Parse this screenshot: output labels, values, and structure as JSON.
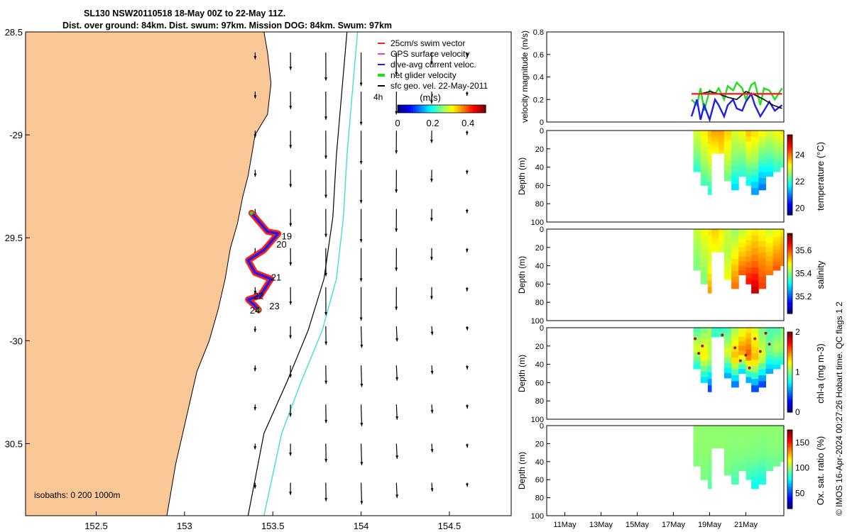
{
  "title_line1": "SL130 NSW20110518 18-May 00Z to 22-May 11Z.",
  "title_line2": "Dist. over ground: 84km. Dist. swum: 97km. Mission DOG: 84km. Swum: 97km",
  "credit": "© IMOS 16-Apr-2024 00:27:26 Hobart time. QC flags 1  2",
  "colors": {
    "land": "#fac896",
    "coast": "#000000",
    "isobath1000": "#40e0d0",
    "track": "#ff1e1e",
    "glider": "#1e1ee6",
    "net": "#22dd22",
    "geo": "#000000",
    "gps": "#e040e0"
  },
  "chart_data": [
    {
      "type": "scatter",
      "panel": "map",
      "xlim": [
        152.1,
        154.85
      ],
      "ylim": [
        -30.85,
        -28.5
      ],
      "x_ticks": [
        152.5,
        153,
        153.5,
        154,
        154.5
      ],
      "x_tick_labels": [
        "152.5",
        "153",
        "153.5",
        "154",
        "154.5"
      ],
      "y_ticks": [
        -28.5,
        -29,
        -29.5,
        -30,
        -30.5
      ],
      "y_tick_labels": [
        "28.5",
        "-29",
        "29.5",
        "-30",
        "30.5"
      ],
      "legend": [
        {
          "label": "25cm/s swim vector",
          "color": "#ff1e1e"
        },
        {
          "label": "GPS surface velocity",
          "color": "#e040e0"
        },
        {
          "label": "dive-avg current veloc.",
          "color": "#1e1ee6"
        },
        {
          "label": "net glider velocity",
          "color": "#22dd22"
        },
        {
          "label": "sfc geo. vel. 22-May-2011",
          "color": "#000000"
        }
      ],
      "legend_extra": "4h",
      "colorbar": {
        "label": "(m/s)",
        "ticks": [
          "0",
          "0.2",
          "0.4"
        ],
        "range": [
          0,
          0.5
        ]
      },
      "isobath_note": "isobaths: 0   200  1000m",
      "track_points": [
        {
          "lon": 153.38,
          "lat": -29.38
        },
        {
          "lon": 153.42,
          "lat": -29.42
        },
        {
          "lon": 153.47,
          "lat": -29.47
        },
        {
          "lon": 153.53,
          "lat": -29.48
        },
        {
          "lon": 153.45,
          "lat": -29.56
        },
        {
          "lon": 153.36,
          "lat": -29.61
        },
        {
          "lon": 153.4,
          "lat": -29.67
        },
        {
          "lon": 153.49,
          "lat": -29.7
        },
        {
          "lon": 153.43,
          "lat": -29.78
        },
        {
          "lon": 153.36,
          "lat": -29.8
        },
        {
          "lon": 153.4,
          "lat": -29.83
        },
        {
          "lon": 153.42,
          "lat": -29.85
        }
      ],
      "day_labels": [
        {
          "text": "19",
          "lon": 153.55,
          "lat": -29.49
        },
        {
          "text": "20",
          "lon": 153.52,
          "lat": -29.53
        },
        {
          "text": "21",
          "lon": 153.49,
          "lat": -29.69
        },
        {
          "text": "22",
          "lon": 153.39,
          "lat": -29.78
        },
        {
          "text": "23",
          "lon": 153.48,
          "lat": -29.83
        },
        {
          "text": "24",
          "lon": 153.37,
          "lat": -29.85
        }
      ]
    },
    {
      "type": "line",
      "panel": "velocity",
      "ylabel": "velocity magnitude (m/s)",
      "xlim": [
        10,
        23.1
      ],
      "ylim": [
        0,
        0.8
      ],
      "y_ticks": [
        0,
        0.2,
        0.4,
        0.6,
        0.8
      ],
      "y_tick_labels": [
        "0",
        "0.2",
        "0.4",
        "0.6",
        "0.8"
      ],
      "series": [
        {
          "color": "#22dd22",
          "x": [
            18,
            18.3,
            18.5,
            18.7,
            19,
            19.3,
            19.5,
            19.8,
            20,
            20.3,
            20.5,
            20.8,
            21,
            21.3,
            21.5,
            21.8,
            22,
            22.3,
            22.6,
            23
          ],
          "y": [
            0.2,
            0.15,
            0.3,
            0.1,
            0.28,
            0.25,
            0.3,
            0.2,
            0.32,
            0.28,
            0.35,
            0.3,
            0.2,
            0.33,
            0.35,
            0.15,
            0.3,
            0.28,
            0.2,
            0.3
          ]
        },
        {
          "color": "#1e1ee6",
          "x": [
            18,
            18.3,
            18.5,
            18.7,
            19,
            19.3,
            19.5,
            19.8,
            20,
            20.3,
            20.5,
            20.8,
            21,
            21.3,
            21.5,
            21.8,
            22,
            22.3,
            22.6,
            23
          ],
          "y": [
            0.05,
            0.2,
            0.02,
            0.15,
            0.02,
            0.2,
            0.15,
            0.05,
            0.15,
            0.2,
            0.12,
            0.1,
            0.18,
            0.25,
            0.15,
            0.05,
            0.1,
            0.18,
            0.1,
            0.15
          ]
        },
        {
          "color": "#000000",
          "x": [
            18,
            18.5,
            19,
            19.5,
            20,
            20.5,
            21,
            21.5,
            22,
            22.5,
            23
          ],
          "y": [
            0.25,
            0.25,
            0.27,
            0.25,
            0.22,
            0.2,
            0.27,
            0.24,
            0.2,
            0.15,
            0.12
          ]
        },
        {
          "color": "#ff1e1e",
          "x": [
            18,
            19,
            20,
            21,
            22,
            23
          ],
          "y": [
            0.25,
            0.25,
            0.25,
            0.25,
            0.25,
            0.25
          ]
        }
      ]
    },
    {
      "type": "heatmap",
      "panel": "temperature",
      "ylabel": "Depth (m)",
      "cbar_label": "temperature (°C)",
      "cbar_ticks": [
        "20",
        "22",
        "24"
      ],
      "cbar_range": [
        19.5,
        25.5
      ],
      "ylim": [
        100,
        0
      ],
      "y_tick_labels": [
        "0",
        "20",
        "40",
        "60",
        "80",
        "100"
      ],
      "profiles": [
        {
          "t": 18.1,
          "maxd": 45,
          "v": [
            23.0,
            22.6,
            22.0
          ]
        },
        {
          "t": 18.5,
          "maxd": 60,
          "v": [
            23.3,
            22.8,
            22.2
          ]
        },
        {
          "t": 18.9,
          "maxd": 70,
          "v": [
            23.6,
            23.0,
            22.0
          ]
        },
        {
          "t": 19.1,
          "maxd": 25,
          "v": [
            23.8,
            23.5,
            23.2
          ]
        },
        {
          "t": 19.5,
          "maxd": 25,
          "v": [
            23.8,
            23.6,
            23.4
          ]
        },
        {
          "t": 19.8,
          "maxd": 55,
          "v": [
            23.5,
            23.0,
            22.4
          ]
        },
        {
          "t": 20.2,
          "maxd": 65,
          "v": [
            23.0,
            22.5,
            21.6
          ]
        },
        {
          "t": 20.6,
          "maxd": 50,
          "v": [
            23.2,
            22.6,
            22.0
          ]
        },
        {
          "t": 21.0,
          "maxd": 60,
          "v": [
            23.6,
            22.8,
            21.8
          ]
        },
        {
          "t": 21.3,
          "maxd": 70,
          "v": [
            23.4,
            22.6,
            21.2
          ]
        },
        {
          "t": 21.7,
          "maxd": 65,
          "v": [
            23.2,
            22.2,
            21.0
          ]
        },
        {
          "t": 22.1,
          "maxd": 50,
          "v": [
            23.0,
            22.4,
            21.6
          ]
        },
        {
          "t": 22.5,
          "maxd": 45,
          "v": [
            23.2,
            22.6,
            22.0
          ]
        },
        {
          "t": 22.9,
          "maxd": 40,
          "v": [
            23.4,
            22.8,
            22.2
          ]
        }
      ]
    },
    {
      "type": "heatmap",
      "panel": "salinity",
      "ylabel": "Depth (m)",
      "cbar_label": "salinity",
      "cbar_ticks": [
        "35.2",
        "35.4",
        "35.6"
      ],
      "cbar_range": [
        35.05,
        35.75
      ],
      "ylim": [
        100,
        0
      ],
      "y_tick_labels": [
        "0",
        "20",
        "40",
        "60",
        "80",
        "100"
      ],
      "profiles": [
        {
          "t": 18.1,
          "maxd": 45,
          "v": [
            35.45,
            35.42,
            35.4
          ]
        },
        {
          "t": 18.5,
          "maxd": 60,
          "v": [
            35.48,
            35.44,
            35.4
          ]
        },
        {
          "t": 18.9,
          "maxd": 70,
          "v": [
            35.5,
            35.46,
            35.55
          ]
        },
        {
          "t": 19.1,
          "maxd": 25,
          "v": [
            35.52,
            35.5,
            35.48
          ]
        },
        {
          "t": 19.5,
          "maxd": 25,
          "v": [
            35.5,
            35.48,
            35.46
          ]
        },
        {
          "t": 19.8,
          "maxd": 55,
          "v": [
            35.45,
            35.44,
            35.48
          ]
        },
        {
          "t": 20.2,
          "maxd": 65,
          "v": [
            35.42,
            35.5,
            35.58
          ]
        },
        {
          "t": 20.6,
          "maxd": 50,
          "v": [
            35.45,
            35.52,
            35.6
          ]
        },
        {
          "t": 21.0,
          "maxd": 60,
          "v": [
            35.48,
            35.55,
            35.65
          ]
        },
        {
          "t": 21.3,
          "maxd": 70,
          "v": [
            35.5,
            35.58,
            35.7
          ]
        },
        {
          "t": 21.7,
          "maxd": 65,
          "v": [
            35.48,
            35.56,
            35.62
          ]
        },
        {
          "t": 22.1,
          "maxd": 50,
          "v": [
            35.46,
            35.52,
            35.58
          ]
        },
        {
          "t": 22.5,
          "maxd": 45,
          "v": [
            35.48,
            35.54,
            35.6
          ]
        },
        {
          "t": 22.9,
          "maxd": 40,
          "v": [
            35.5,
            35.55,
            35.58
          ]
        }
      ]
    },
    {
      "type": "heatmap",
      "panel": "chlorophyll",
      "ylabel": "Depth (m)",
      "cbar_label": "chl-a (mg m-3)",
      "cbar_ticks": [
        "0",
        "1",
        "2"
      ],
      "cbar_range": [
        0,
        2
      ],
      "ylim": [
        100,
        0
      ],
      "y_tick_labels": [
        "0",
        "20",
        "40",
        "60",
        "80",
        "100"
      ],
      "profiles": [
        {
          "t": 18.1,
          "maxd": 45,
          "v": [
            0.9,
            1.2,
            0.8
          ]
        },
        {
          "t": 18.5,
          "maxd": 60,
          "v": [
            1.0,
            1.3,
            0.7
          ]
        },
        {
          "t": 18.9,
          "maxd": 70,
          "v": [
            1.1,
            1.1,
            0.4
          ]
        },
        {
          "t": 19.1,
          "maxd": 10,
          "v": [
            0.8,
            0.9,
            0.8
          ]
        },
        {
          "t": 19.5,
          "maxd": 10,
          "v": [
            0.8,
            0.9,
            0.9
          ]
        },
        {
          "t": 19.8,
          "maxd": 55,
          "v": [
            0.9,
            1.2,
            0.6
          ]
        },
        {
          "t": 20.2,
          "maxd": 65,
          "v": [
            1.1,
            1.4,
            0.5
          ]
        },
        {
          "t": 20.6,
          "maxd": 50,
          "v": [
            1.2,
            1.5,
            0.7
          ]
        },
        {
          "t": 21.0,
          "maxd": 60,
          "v": [
            1.3,
            1.6,
            0.6
          ]
        },
        {
          "t": 21.3,
          "maxd": 70,
          "v": [
            1.2,
            1.4,
            0.4
          ]
        },
        {
          "t": 21.7,
          "maxd": 65,
          "v": [
            1.0,
            1.2,
            0.4
          ]
        },
        {
          "t": 22.1,
          "maxd": 50,
          "v": [
            0.9,
            1.0,
            0.6
          ]
        },
        {
          "t": 22.5,
          "maxd": 45,
          "v": [
            0.9,
            1.1,
            0.7
          ]
        },
        {
          "t": 22.9,
          "maxd": 40,
          "v": [
            1.0,
            1.1,
            0.8
          ]
        }
      ]
    },
    {
      "type": "heatmap",
      "panel": "oxygen",
      "ylabel": "Depth (m)",
      "cbar_label": "Ox. sat. ratio (%)",
      "cbar_ticks": [
        "50",
        "100",
        "150"
      ],
      "cbar_range": [
        20,
        175
      ],
      "ylim": [
        100,
        0
      ],
      "y_tick_labels": [
        "0",
        "20",
        "40",
        "60",
        "80",
        "100"
      ],
      "x_tick_labels": [
        "11May",
        "13May",
        "15May",
        "17May",
        "19May",
        "21May"
      ],
      "x_ticks": [
        11,
        13,
        15,
        17,
        19,
        21
      ],
      "profiles": [
        {
          "t": 18.1,
          "maxd": 45,
          "v": [
            100,
            100,
            98
          ]
        },
        {
          "t": 18.5,
          "maxd": 60,
          "v": [
            100,
            100,
            97
          ]
        },
        {
          "t": 18.9,
          "maxd": 70,
          "v": [
            100,
            99,
            92
          ]
        },
        {
          "t": 19.1,
          "maxd": 25,
          "v": [
            100,
            100,
            100
          ]
        },
        {
          "t": 19.5,
          "maxd": 25,
          "v": [
            100,
            100,
            100
          ]
        },
        {
          "t": 19.8,
          "maxd": 55,
          "v": [
            100,
            99,
            96
          ]
        },
        {
          "t": 20.2,
          "maxd": 65,
          "v": [
            100,
            98,
            90
          ]
        },
        {
          "t": 20.6,
          "maxd": 50,
          "v": [
            100,
            99,
            94
          ]
        },
        {
          "t": 21.0,
          "maxd": 60,
          "v": [
            100,
            98,
            88
          ]
        },
        {
          "t": 21.3,
          "maxd": 70,
          "v": [
            100,
            97,
            80
          ]
        },
        {
          "t": 21.7,
          "maxd": 65,
          "v": [
            100,
            96,
            82
          ]
        },
        {
          "t": 22.1,
          "maxd": 50,
          "v": [
            100,
            98,
            92
          ]
        },
        {
          "t": 22.5,
          "maxd": 45,
          "v": [
            100,
            99,
            95
          ]
        },
        {
          "t": 22.9,
          "maxd": 40,
          "v": [
            100,
            99,
            96
          ]
        }
      ]
    }
  ]
}
